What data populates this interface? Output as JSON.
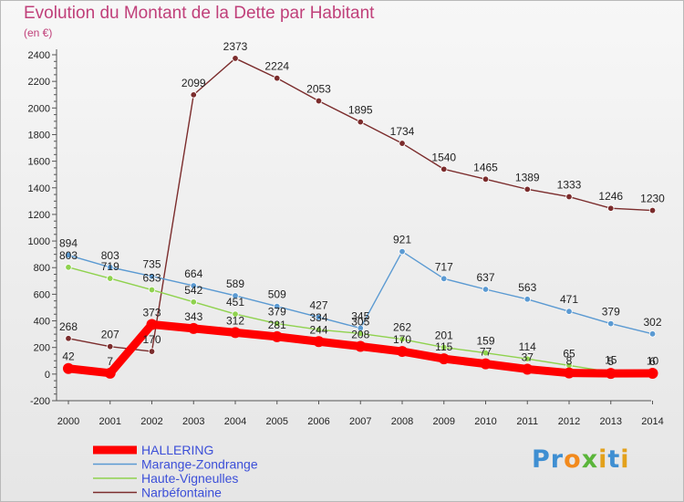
{
  "title": "Evolution du Montant de la Dette par Habitant",
  "subtitle": "(en €)",
  "logo": {
    "text": "Proxiti",
    "letter_colors": [
      "#3f8fd2",
      "#3f8fd2",
      "#f28a1d",
      "#5ab53a",
      "#e3a11b",
      "#3f8fd2",
      "#e3a11b"
    ]
  },
  "chart_data": {
    "type": "line",
    "title": "Evolution du Montant de la Dette par Habitant",
    "subtitle": "(en €)",
    "x": [
      "2000",
      "2001",
      "2002",
      "2003",
      "2004",
      "2005",
      "2006",
      "2007",
      "2008",
      "2009",
      "2010",
      "2011",
      "2012",
      "2013",
      "2014"
    ],
    "yticks": [
      "-200",
      "0",
      "200",
      "400",
      "600",
      "800",
      "1000",
      "1200",
      "1400",
      "1600",
      "1800",
      "2000",
      "2200",
      "2400"
    ],
    "ylim": [
      -200,
      2400
    ],
    "grid": false,
    "legend_position": "bottom-left",
    "series": [
      {
        "name": "Narbéfontaine",
        "color": "#7b2c2c",
        "values": [
          268,
          207,
          170,
          2099,
          2373,
          2224,
          2053,
          1895,
          1734,
          1540,
          1465,
          1389,
          1333,
          1246,
          1230
        ],
        "labels": [
          "268",
          "207",
          "170",
          "2099",
          "2373",
          "2224",
          "2053",
          "1895",
          "1734",
          "1540",
          "1465",
          "1389",
          "1333",
          "1246",
          "1230"
        ]
      },
      {
        "name": "Marange-Zondrange",
        "color": "#5b9ad2",
        "values": [
          894,
          803,
          735,
          664,
          589,
          509,
          427,
          345,
          921,
          717,
          637,
          563,
          471,
          379,
          302
        ],
        "labels": [
          "894",
          "803",
          "735",
          "664",
          "589",
          "509",
          "427",
          "345",
          "921",
          "717",
          "637",
          "563",
          "471",
          "379",
          "302"
        ]
      },
      {
        "name": "Haute-Vigneulles",
        "color": "#8fd24e",
        "values": [
          803,
          719,
          633,
          542,
          451,
          379,
          334,
          305,
          262,
          201,
          159,
          114,
          65,
          15,
          10
        ],
        "labels": [
          "803",
          "719",
          "633",
          "542",
          "451",
          "379",
          "334",
          "305",
          "262",
          "201",
          "159",
          "114",
          "65",
          "15",
          "10"
        ]
      },
      {
        "name": "HALLERING",
        "color": "#ff0000",
        "values": [
          42,
          7,
          373,
          343,
          312,
          281,
          244,
          208,
          170,
          115,
          77,
          37,
          8,
          5,
          6
        ],
        "labels": [
          "42",
          "7",
          "373",
          "343",
          "312",
          "281",
          "244",
          "208",
          "170",
          "115",
          "77",
          "37",
          "8",
          "5",
          "6"
        ]
      }
    ]
  }
}
